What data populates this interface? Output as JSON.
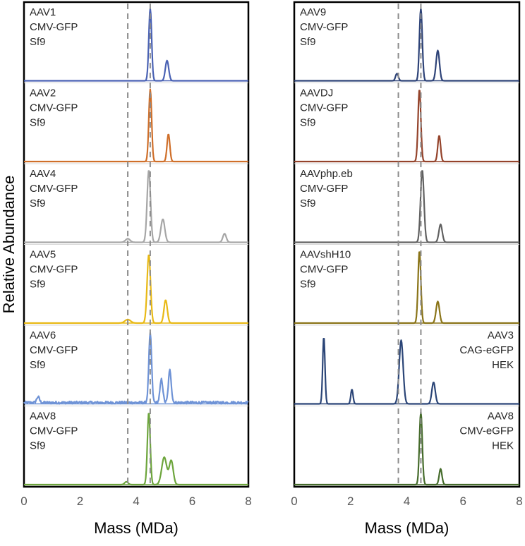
{
  "chart_data": [
    {
      "type": "line",
      "panel": "left",
      "xlabel": "Mass (MDa)",
      "ylabel": "Relative Abundance",
      "xlim": [
        0,
        8
      ],
      "xticks": [
        "0",
        "2",
        "4",
        "6",
        "8"
      ],
      "reference_lines_x": [
        3.7,
        4.5
      ],
      "subplots": [
        {
          "labels": [
            "AAV1",
            "CMV-GFP",
            "Sf9"
          ],
          "label_position": "top-left",
          "color": "#4a62b4",
          "peaks": [
            {
              "x": 4.5,
              "y": 1.0,
              "w": 0.05
            },
            {
              "x": 5.1,
              "y": 0.28,
              "w": 0.06
            }
          ],
          "noise": 0.0
        },
        {
          "labels": [
            "AAV2",
            "CMV-GFP",
            "Sf9"
          ],
          "label_position": "top-left",
          "color": "#cf6f2a",
          "peaks": [
            {
              "x": 4.5,
              "y": 1.0,
              "w": 0.05
            },
            {
              "x": 5.15,
              "y": 0.38,
              "w": 0.05
            }
          ],
          "noise": 0.0
        },
        {
          "labels": [
            "AAV4",
            "CMV-GFP",
            "Sf9"
          ],
          "label_position": "top-left",
          "color": "#a6a6a6",
          "peaks": [
            {
              "x": 3.7,
              "y": 0.05,
              "w": 0.08
            },
            {
              "x": 4.45,
              "y": 1.0,
              "w": 0.06
            },
            {
              "x": 4.95,
              "y": 0.32,
              "w": 0.07
            },
            {
              "x": 7.15,
              "y": 0.12,
              "w": 0.06
            }
          ],
          "noise": 0.0
        },
        {
          "labels": [
            "AAV5",
            "CMV-GFP",
            "Sf9"
          ],
          "label_position": "top-left",
          "color": "#e8b915",
          "peaks": [
            {
              "x": 3.7,
              "y": 0.05,
              "w": 0.1
            },
            {
              "x": 4.45,
              "y": 0.95,
              "w": 0.06
            },
            {
              "x": 5.05,
              "y": 0.32,
              "w": 0.06
            }
          ],
          "noise": 0.0
        },
        {
          "labels": [
            "AAV6",
            "CMV-GFP",
            "Sf9"
          ],
          "label_position": "top-left",
          "color": "#6f93d6",
          "peaks": [
            {
              "x": 0.5,
              "y": 0.08,
              "w": 0.05
            },
            {
              "x": 4.5,
              "y": 0.95,
              "w": 0.05
            },
            {
              "x": 4.9,
              "y": 0.32,
              "w": 0.05
            },
            {
              "x": 5.2,
              "y": 0.45,
              "w": 0.05
            }
          ],
          "noise": 0.035
        },
        {
          "labels": [
            "AAV8",
            "CMV-GFP",
            "Sf9"
          ],
          "label_position": "top-left",
          "color": "#6da53c",
          "peaks": [
            {
              "x": 3.65,
              "y": 0.04,
              "w": 0.06
            },
            {
              "x": 4.45,
              "y": 1.0,
              "w": 0.05
            },
            {
              "x": 5.0,
              "y": 0.38,
              "w": 0.09
            },
            {
              "x": 5.25,
              "y": 0.33,
              "w": 0.07
            }
          ],
          "noise": 0.0
        }
      ]
    },
    {
      "type": "line",
      "panel": "right",
      "xlabel": "Mass (MDa)",
      "xlim": [
        0,
        8
      ],
      "xticks": [
        "0",
        "2",
        "4",
        "6",
        "8"
      ],
      "reference_lines_x": [
        3.7,
        4.5
      ],
      "subplots": [
        {
          "labels": [
            "AAV9",
            "CMV-GFP",
            "Sf9"
          ],
          "label_position": "top-left",
          "color": "#2e4378",
          "peaks": [
            {
              "x": 3.65,
              "y": 0.1,
              "w": 0.05
            },
            {
              "x": 4.5,
              "y": 1.0,
              "w": 0.05
            },
            {
              "x": 5.1,
              "y": 0.42,
              "w": 0.06
            }
          ],
          "noise": 0.0
        },
        {
          "labels": [
            "AAVDJ",
            "CMV-GFP",
            "Sf9"
          ],
          "label_position": "top-left",
          "color": "#94432b",
          "peaks": [
            {
              "x": 4.45,
              "y": 1.0,
              "w": 0.05
            },
            {
              "x": 5.15,
              "y": 0.36,
              "w": 0.05
            }
          ],
          "noise": 0.0
        },
        {
          "labels": [
            "AAVphp.eb",
            "CMV-GFP",
            "Sf9"
          ],
          "label_position": "top-left",
          "color": "#616161",
          "peaks": [
            {
              "x": 4.55,
              "y": 1.0,
              "w": 0.06
            },
            {
              "x": 5.2,
              "y": 0.25,
              "w": 0.06
            }
          ],
          "noise": 0.0
        },
        {
          "labels": [
            "AAVshH10",
            "CMV-GFP",
            "Sf9"
          ],
          "label_position": "top-left",
          "color": "#8a7418",
          "peaks": [
            {
              "x": 4.45,
              "y": 1.0,
              "w": 0.05
            },
            {
              "x": 5.1,
              "y": 0.3,
              "w": 0.06
            }
          ],
          "noise": 0.0
        },
        {
          "labels": [
            "AAV3",
            "CAG-eGFP",
            "HEK"
          ],
          "label_position": "top-right",
          "color": "#2b4577",
          "peaks": [
            {
              "x": 1.05,
              "y": 0.93,
              "w": 0.04
            },
            {
              "x": 2.05,
              "y": 0.2,
              "w": 0.04
            },
            {
              "x": 3.8,
              "y": 0.88,
              "w": 0.07
            },
            {
              "x": 4.95,
              "y": 0.3,
              "w": 0.06
            }
          ],
          "noise": 0.0
        },
        {
          "labels": [
            "AAV8",
            "CMV-eGFP",
            "HEK"
          ],
          "label_position": "top-right",
          "color": "#466c2c",
          "peaks": [
            {
              "x": 4.5,
              "y": 1.0,
              "w": 0.05
            },
            {
              "x": 5.2,
              "y": 0.22,
              "w": 0.05
            }
          ],
          "noise": 0.0
        }
      ]
    }
  ]
}
